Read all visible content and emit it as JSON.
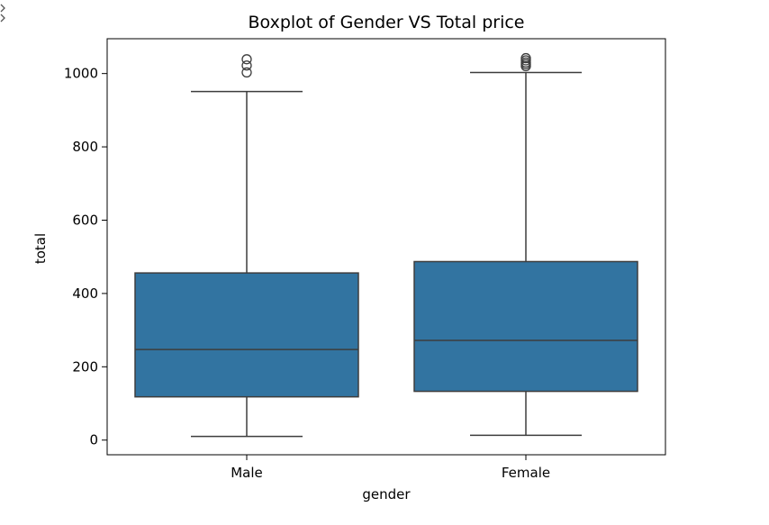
{
  "cell_output_icon": "output-expand-icon",
  "chart_data": {
    "type": "box",
    "title": "Boxplot of Gender VS Total price",
    "xlabel": "gender",
    "ylabel": "total",
    "categories": [
      "Male",
      "Female"
    ],
    "boxes": [
      {
        "category": "Male",
        "whisker_low": 10,
        "q1": 118,
        "median": 247,
        "q3": 456,
        "whisker_high": 951,
        "outliers": [
          1003,
          1022,
          1039
        ]
      },
      {
        "category": "Female",
        "whisker_low": 13,
        "q1": 133,
        "median": 272,
        "q3": 487,
        "whisker_high": 1003,
        "outliers": [
          1020,
          1025,
          1030,
          1036,
          1042
        ]
      }
    ],
    "ylim": [
      -40,
      1095
    ],
    "yticks": [
      0,
      200,
      400,
      600,
      800,
      1000
    ],
    "box_color": "#3274a1",
    "line_color": "#3d3d3d",
    "grid": false,
    "legend": "none"
  }
}
